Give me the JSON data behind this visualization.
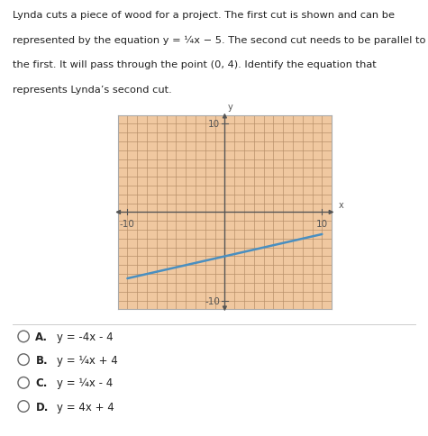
{
  "graph_bg_color": "#f0c8a0",
  "grid_color": "#b8906a",
  "border_color": "#aaaaaa",
  "axis_color": "#555555",
  "arrow_color": "#555555",
  "line_color": "#4a8fc0",
  "line_slope": 0.25,
  "line_intercept": -5,
  "xlim": [
    -11,
    11
  ],
  "ylim": [
    -11,
    11
  ],
  "options": [
    {
      "label": "A.",
      "formula": "y = -4x - 4"
    },
    {
      "label": "B.",
      "formula": "y = ¼x + 4"
    },
    {
      "label": "C.",
      "formula": "y = ¼x - 4"
    },
    {
      "label": "D.",
      "formula": "y = 4x + 4"
    }
  ],
  "title_lines": [
    "Lynda cuts a piece of wood for a project. The first cut is shown and can be",
    "represented by the equation y = ¼x − 5. The second cut needs to be parallel to",
    "the first. It will pass through the point (0, 4). Identify the equation that",
    "represents Lynda’s second cut."
  ],
  "figsize": [
    4.75,
    4.85
  ],
  "dpi": 100
}
